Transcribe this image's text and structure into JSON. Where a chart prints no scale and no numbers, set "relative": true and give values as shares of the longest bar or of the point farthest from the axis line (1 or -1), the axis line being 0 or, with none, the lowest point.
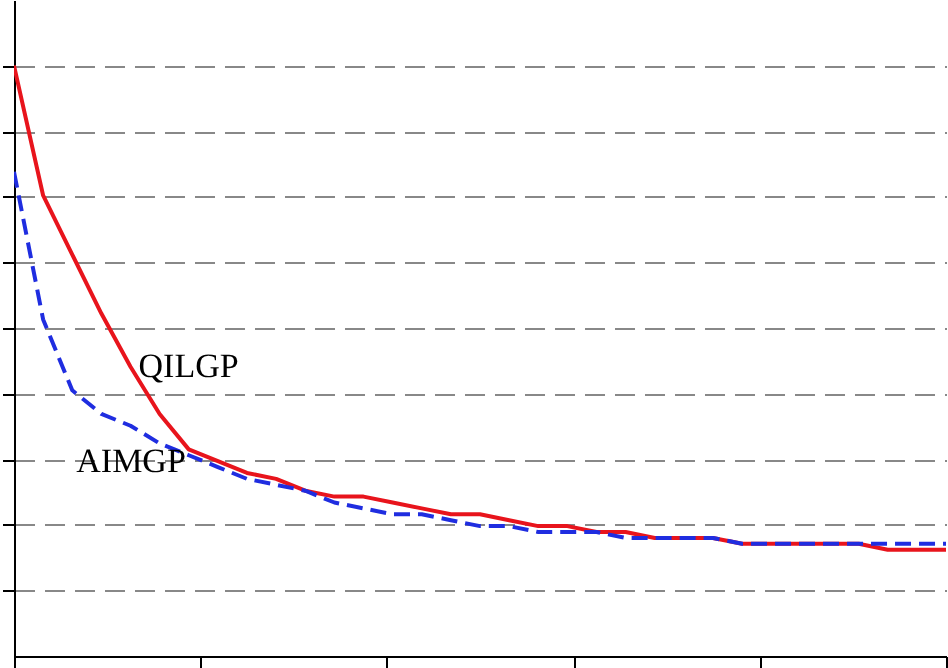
{
  "chart_data": {
    "type": "line",
    "relative": true,
    "grid": "y",
    "categories": [
      null,
      null,
      null,
      null,
      null,
      null,
      null,
      null,
      null,
      null,
      null,
      null,
      null,
      null,
      null,
      null,
      null,
      null,
      null,
      null,
      null,
      null,
      null,
      null,
      null,
      null,
      null,
      null,
      null,
      null,
      null,
      null,
      null
    ],
    "series": [
      {
        "name": "QILGP",
        "color": "#e8141c",
        "line_style": "solid",
        "values": [
          1,
          0.78,
          0.68,
          0.58,
          0.49,
          0.41,
          0.35,
          0.33,
          0.31,
          0.3,
          0.28,
          0.27,
          0.27,
          0.26,
          0.25,
          0.24,
          0.24,
          0.23,
          0.22,
          0.22,
          0.21,
          0.21,
          0.2,
          0.2,
          0.2,
          0.19,
          0.19,
          0.19,
          0.19,
          0.19,
          0.18,
          0.18,
          0.18
        ]
      },
      {
        "name": "AIMGP",
        "color": "#1f2de0",
        "line_style": "dashed",
        "values": [
          0.82,
          0.57,
          0.45,
          0.41,
          0.39,
          0.36,
          0.34,
          0.32,
          0.3,
          0.29,
          0.28,
          0.26,
          0.25,
          0.24,
          0.24,
          0.23,
          0.22,
          0.22,
          0.21,
          0.21,
          0.21,
          0.2,
          0.2,
          0.2,
          0.2,
          0.19,
          0.19,
          0.19,
          0.19,
          0.19,
          0.19,
          0.19,
          0.19
        ]
      }
    ]
  }
}
